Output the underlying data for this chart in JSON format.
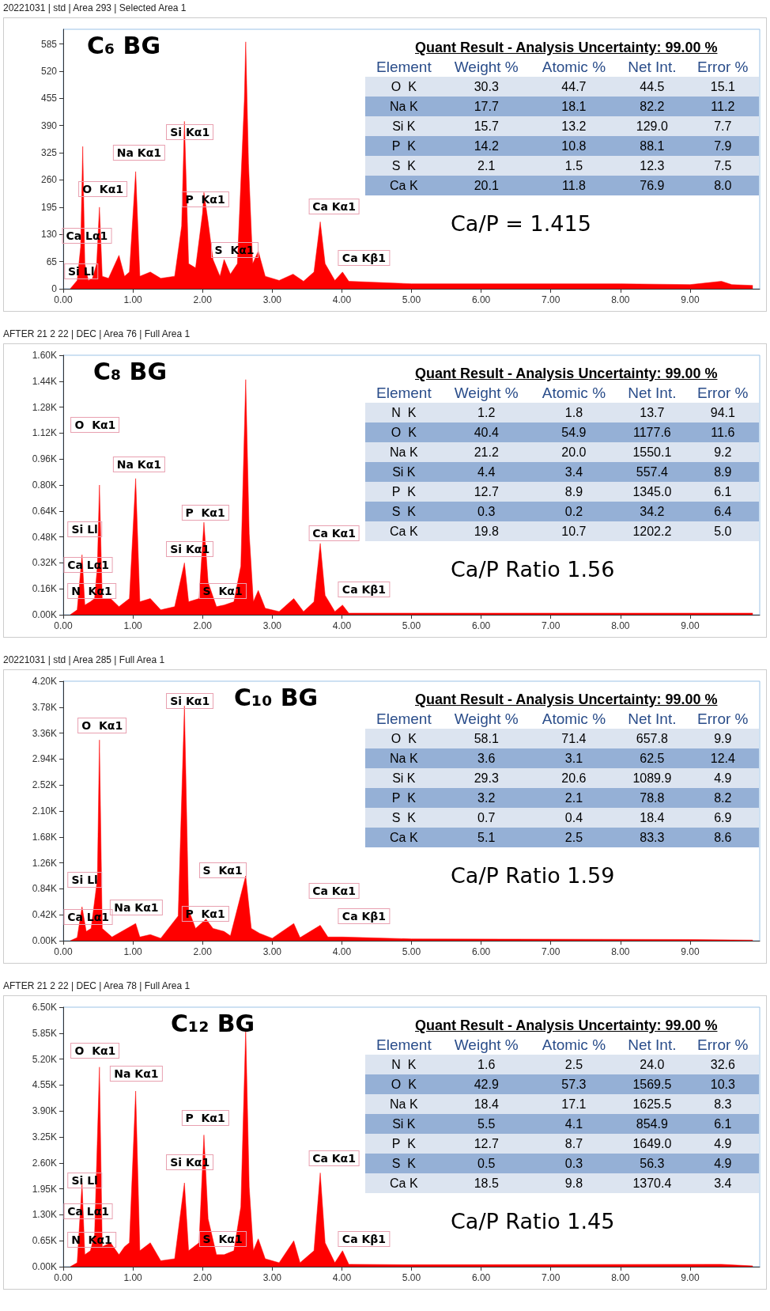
{
  "chart_data": [
    {
      "type": "area",
      "title": "C₆ BG",
      "subtitle": "20221031 | std | Area 293 | Selected Area 1",
      "x": [
        0.1,
        0.2,
        0.25,
        0.28,
        0.31,
        0.36,
        0.42,
        0.48,
        0.52,
        0.56,
        0.65,
        0.8,
        0.88,
        0.95,
        1.04,
        1.1,
        1.25,
        1.4,
        1.6,
        1.7,
        1.74,
        1.8,
        1.9,
        2.0,
        2.02,
        2.08,
        2.15,
        2.25,
        2.31,
        2.4,
        2.5,
        2.6,
        2.62,
        2.66,
        2.72,
        2.8,
        2.9,
        3.1,
        3.3,
        3.45,
        3.6,
        3.69,
        3.76,
        3.9,
        4.01,
        4.1,
        5,
        6,
        7,
        8,
        9,
        9.45,
        9.6,
        9.9
      ],
      "series": [
        {
          "color": "#ff0000",
          "values": [
            0,
            20,
            100,
            340,
            60,
            20,
            25,
            60,
            195,
            30,
            25,
            80,
            30,
            40,
            280,
            30,
            40,
            25,
            30,
            150,
            400,
            60,
            50,
            180,
            230,
            160,
            70,
            30,
            70,
            35,
            60,
            450,
            590,
            300,
            60,
            90,
            30,
            20,
            35,
            18,
            40,
            160,
            60,
            20,
            40,
            18,
            12,
            12,
            12,
            12,
            10,
            18,
            10,
            8
          ]
        }
      ],
      "xlim": [
        0,
        10
      ],
      "xticks": [
        {
          "value": 0,
          "label": "0.00"
        },
        {
          "value": 1,
          "label": "1.00"
        },
        {
          "value": 2,
          "label": "2.00"
        },
        {
          "value": 3,
          "label": "3.00"
        },
        {
          "value": 4,
          "label": "4.00"
        },
        {
          "value": 5,
          "label": "5.00"
        },
        {
          "value": 6,
          "label": "6.00"
        },
        {
          "value": 7,
          "label": "7.00"
        },
        {
          "value": 8,
          "label": "8.00"
        },
        {
          "value": 9,
          "label": "9.00"
        }
      ],
      "ylim": [
        0,
        620
      ],
      "yticks": [
        0,
        65,
        130,
        195,
        260,
        325,
        390,
        455,
        520,
        585
      ],
      "annotations": [
        "O  Kα1",
        "Na Kα1",
        "Si Kα1",
        "P  Kα1",
        "S  Kα1",
        "Ca Kα1",
        "Ca Kβ1",
        "Ca Lα1",
        "Si Ll",
        "Quant Result - Analysis Uncertainty: 99.00 %",
        "Element",
        "Weight %",
        "Atomic %",
        "Net Int.",
        "Error %",
        "O  K",
        "30.3",
        "44.7",
        "44.5",
        "15.1",
        "Na K",
        "17.7",
        "18.1",
        "82.2",
        "11.2",
        "Si K",
        "15.7",
        "13.2",
        "129.0",
        "7.7",
        "P  K",
        "14.2",
        "10.8",
        "88.1",
        "7.9",
        "S  K",
        "2.1",
        "1.5",
        "12.3",
        "7.5",
        "Ca K",
        "20.1",
        "11.8",
        "76.9",
        "8.0",
        "Ca/P = 1.415"
      ]
    },
    {
      "type": "area",
      "title": "C₈ BG",
      "subtitle": "AFTER 21 2 22 | DEC | Area 76 | Full Area 1",
      "x": [
        0.1,
        0.2,
        0.27,
        0.31,
        0.39,
        0.45,
        0.49,
        0.52,
        0.56,
        0.68,
        0.8,
        0.95,
        1.04,
        1.1,
        1.25,
        1.4,
        1.6,
        1.74,
        1.8,
        1.95,
        2.02,
        2.08,
        2.2,
        2.31,
        2.45,
        2.55,
        2.62,
        2.67,
        2.73,
        2.8,
        2.9,
        3.1,
        3.31,
        3.45,
        3.6,
        3.69,
        3.76,
        3.9,
        4.01,
        4.1,
        5,
        6,
        9.45,
        9.9
      ],
      "series": [
        {
          "color": "#ff0000",
          "values": [
            0,
            0.03,
            0.37,
            0.06,
            0.08,
            0.1,
            0.3,
            0.8,
            0.1,
            0.1,
            0.05,
            0.1,
            0.84,
            0.08,
            0.1,
            0.03,
            0.05,
            0.32,
            0.08,
            0.1,
            0.57,
            0.2,
            0.05,
            0.06,
            0.08,
            0.3,
            1.45,
            0.5,
            0.08,
            0.15,
            0.04,
            0.02,
            0.1,
            0.02,
            0.08,
            0.44,
            0.12,
            0.02,
            0.06,
            0.01,
            0.01,
            0.01,
            0.01,
            0.01
          ]
        }
      ],
      "xlim": [
        0,
        10
      ],
      "xticks": [
        {
          "value": 0,
          "label": "0.00"
        },
        {
          "value": 1,
          "label": "1.00"
        },
        {
          "value": 2,
          "label": "2.00"
        },
        {
          "value": 3,
          "label": "3.00"
        },
        {
          "value": 4,
          "label": "4.00"
        },
        {
          "value": 5,
          "label": "5.00"
        },
        {
          "value": 6,
          "label": "6.00"
        },
        {
          "value": 7,
          "label": "7.00"
        },
        {
          "value": 8,
          "label": "8.00"
        },
        {
          "value": 9,
          "label": "9.00"
        }
      ],
      "ylim": [
        0,
        1.6
      ],
      "yticks": [
        {
          "value": 0,
          "label": "0.00K"
        },
        {
          "value": 0.16,
          "label": "0.16K"
        },
        {
          "value": 0.32,
          "label": "0.32K"
        },
        {
          "value": 0.48,
          "label": "0.48K"
        },
        {
          "value": 0.64,
          "label": "0.64K"
        },
        {
          "value": 0.8,
          "label": "0.80K"
        },
        {
          "value": 0.96,
          "label": "0.96K"
        },
        {
          "value": 1.12,
          "label": "1.12K"
        },
        {
          "value": 1.28,
          "label": "1.28K"
        },
        {
          "value": 1.44,
          "label": "1.44K"
        },
        {
          "value": 1.6,
          "label": "1.60K"
        }
      ],
      "annotations": [
        "O  Kα1",
        "Na Kα1",
        "P  Kα1",
        "Si Kα1",
        "S  Kα1",
        "Ca Kα1",
        "Ca Kβ1",
        "Si Ll",
        "Ca Lα1",
        "N  Kα1",
        "Quant Result - Analysis Uncertainty: 99.00 %",
        "Element",
        "Weight %",
        "Atomic %",
        "Net Int.",
        "Error %",
        "N  K",
        "1.2",
        "1.8",
        "13.7",
        "94.1",
        "O  K",
        "40.4",
        "54.9",
        "1177.6",
        "11.6",
        "Na K",
        "21.2",
        "20.0",
        "1550.1",
        "9.2",
        "Si K",
        "4.4",
        "3.4",
        "557.4",
        "8.9",
        "P  K",
        "12.7",
        "8.9",
        "1345.0",
        "6.1",
        "S  K",
        "0.3",
        "0.2",
        "34.2",
        "6.4",
        "Ca K",
        "19.8",
        "10.7",
        "1202.2",
        "5.0",
        "Ca/P Ratio 1.56"
      ]
    },
    {
      "type": "area",
      "title": "C₁₀ BG",
      "subtitle": "20221031 | std | Area 285 | Full Area 1",
      "x": [
        0.1,
        0.2,
        0.27,
        0.33,
        0.4,
        0.49,
        0.52,
        0.56,
        0.7,
        1.04,
        1.1,
        1.25,
        1.4,
        1.65,
        1.74,
        1.8,
        1.9,
        2.05,
        2.15,
        2.31,
        2.4,
        2.62,
        2.7,
        2.82,
        3.0,
        3.31,
        3.4,
        3.69,
        3.8,
        4.01,
        5,
        9,
        9.9
      ],
      "series": [
        {
          "color": "#ff0000",
          "values": [
            0,
            0.05,
            0.55,
            0.15,
            0.2,
            1.0,
            3.25,
            0.2,
            0.06,
            0.28,
            0.06,
            0.1,
            0.04,
            0.4,
            3.8,
            0.5,
            0.2,
            0.35,
            0.2,
            0.15,
            0.08,
            1.05,
            0.2,
            0.12,
            0.04,
            0.28,
            0.05,
            0.25,
            0.06,
            0.06,
            0.03,
            0.02,
            0.01
          ]
        }
      ],
      "xlim": [
        0,
        10
      ],
      "xticks": [
        {
          "value": 0,
          "label": "0.00"
        },
        {
          "value": 1,
          "label": "1.00"
        },
        {
          "value": 2,
          "label": "2.00"
        },
        {
          "value": 3,
          "label": "3.00"
        },
        {
          "value": 4,
          "label": "4.00"
        },
        {
          "value": 5,
          "label": "5.00"
        },
        {
          "value": 6,
          "label": "6.00"
        },
        {
          "value": 7,
          "label": "7.00"
        },
        {
          "value": 8,
          "label": "8.00"
        },
        {
          "value": 9,
          "label": "9.00"
        }
      ],
      "ylim": [
        0,
        4.2
      ],
      "yticks": [
        {
          "value": 0,
          "label": "0.00K"
        },
        {
          "value": 0.42,
          "label": "0.42K"
        },
        {
          "value": 0.84,
          "label": "0.84K"
        },
        {
          "value": 1.26,
          "label": "1.26K"
        },
        {
          "value": 1.68,
          "label": "1.68K"
        },
        {
          "value": 2.1,
          "label": "2.10K"
        },
        {
          "value": 2.52,
          "label": "2.52K"
        },
        {
          "value": 2.94,
          "label": "2.94K"
        },
        {
          "value": 3.36,
          "label": "3.36K"
        },
        {
          "value": 3.78,
          "label": "3.78K"
        },
        {
          "value": 4.2,
          "label": "4.20K"
        }
      ],
      "annotations": [
        "O  Kα1",
        "Si Kα1",
        "S  Kα1",
        "Ca Kα1",
        "Ca Kβ1",
        "P  Kα1",
        "Na Kα1",
        "Si Ll",
        "Ca Lα1",
        "Quant Result - Analysis Uncertainty: 99.00 %",
        "Element",
        "Weight %",
        "Atomic %",
        "Net Int.",
        "Error %",
        "O  K",
        "58.1",
        "71.4",
        "657.8",
        "9.9",
        "Na K",
        "3.6",
        "3.1",
        "62.5",
        "12.4",
        "Si K",
        "29.3",
        "20.6",
        "1089.9",
        "4.9",
        "P  K",
        "3.2",
        "2.1",
        "78.8",
        "8.2",
        "S  K",
        "0.7",
        "0.4",
        "18.4",
        "6.9",
        "Ca K",
        "5.1",
        "2.5",
        "83.3",
        "8.6",
        "Ca/P Ratio 1.59"
      ]
    },
    {
      "type": "area",
      "title": "C₁₂ BG",
      "subtitle": "AFTER 21 2 22 | DEC | Area 78 | Full Area 1",
      "x": [
        0.1,
        0.2,
        0.27,
        0.31,
        0.39,
        0.45,
        0.52,
        0.56,
        0.68,
        0.8,
        0.88,
        0.95,
        1.04,
        1.1,
        1.25,
        1.4,
        1.6,
        1.74,
        1.8,
        1.95,
        2.02,
        2.08,
        2.2,
        2.31,
        2.45,
        2.55,
        2.62,
        2.67,
        2.73,
        2.8,
        2.9,
        3.1,
        3.31,
        3.4,
        3.6,
        3.69,
        3.76,
        3.9,
        4.01,
        4.1,
        5,
        9.45,
        9.9
      ],
      "series": [
        {
          "color": "#ff0000",
          "values": [
            0,
            0.1,
            2.1,
            0.3,
            0.4,
            0.8,
            5.0,
            0.5,
            0.6,
            0.3,
            0.5,
            0.6,
            4.4,
            0.4,
            0.6,
            0.15,
            0.2,
            2.1,
            0.4,
            0.6,
            3.3,
            1.2,
            0.3,
            0.3,
            0.4,
            1.5,
            5.95,
            2.0,
            0.4,
            0.7,
            0.2,
            0.1,
            0.65,
            0.1,
            0.4,
            2.35,
            0.6,
            0.1,
            0.4,
            0.06,
            0.05,
            0.06,
            0.02
          ]
        }
      ],
      "xlim": [
        0,
        10
      ],
      "xticks": [
        {
          "value": 0,
          "label": "0.00"
        },
        {
          "value": 1,
          "label": "1.00"
        },
        {
          "value": 2,
          "label": "2.00"
        },
        {
          "value": 3,
          "label": "3.00"
        },
        {
          "value": 4,
          "label": "4.00"
        },
        {
          "value": 5,
          "label": "5.00"
        },
        {
          "value": 6,
          "label": "6.00"
        },
        {
          "value": 7,
          "label": "7.00"
        },
        {
          "value": 8,
          "label": "8.00"
        },
        {
          "value": 9,
          "label": "9.00"
        }
      ],
      "ylim": [
        0,
        6.5
      ],
      "yticks": [
        {
          "value": 0,
          "label": "0.00K"
        },
        {
          "value": 0.65,
          "label": "0.65K"
        },
        {
          "value": 1.3,
          "label": "1.30K"
        },
        {
          "value": 1.95,
          "label": "1.95K"
        },
        {
          "value": 2.6,
          "label": "2.60K"
        },
        {
          "value": 3.25,
          "label": "3.25K"
        },
        {
          "value": 3.9,
          "label": "3.90K"
        },
        {
          "value": 4.55,
          "label": "4.55K"
        },
        {
          "value": 5.2,
          "label": "5.20K"
        },
        {
          "value": 5.85,
          "label": "5.85K"
        },
        {
          "value": 6.5,
          "label": "6.50K"
        }
      ],
      "annotations": [
        "O  Kα1",
        "Na Kα1",
        "P  Kα1",
        "Si Kα1",
        "S  Kα1",
        "Ca Kα1",
        "Ca Kβ1",
        "Si Ll",
        "Ca Lα1",
        "N  Kα1",
        "Quant Result - Analysis Uncertainty: 99.00 %",
        "Element",
        "Weight %",
        "Atomic %",
        "Net Int.",
        "Error %",
        "N  K",
        "1.6",
        "2.5",
        "24.0",
        "32.6",
        "O  K",
        "42.9",
        "57.3",
        "1569.5",
        "10.3",
        "Na K",
        "18.4",
        "17.1",
        "1625.5",
        "8.3",
        "Si K",
        "5.5",
        "4.1",
        "854.9",
        "6.1",
        "P  K",
        "12.7",
        "8.7",
        "1649.0",
        "4.9",
        "S  K",
        "0.5",
        "0.3",
        "56.3",
        "4.9",
        "Ca K",
        "18.5",
        "9.8",
        "1370.4",
        "3.4",
        "Ca/P Ratio 1.45"
      ]
    }
  ]
}
